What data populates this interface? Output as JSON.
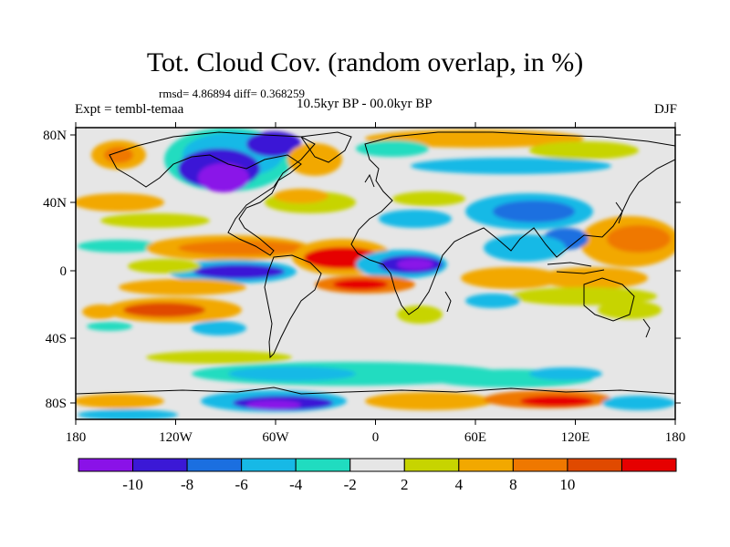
{
  "title": "Tot. Cloud Cov. (random overlap, in %)",
  "stats": "rmsd= 4.86894 diff= 0.368259",
  "experiment": "Expt = tembl-temaa",
  "period": "10.5kyr BP - 00.0kyr BP",
  "season": "DJF",
  "axes": {
    "x_ticks": [
      "180",
      "120W",
      "60W",
      "0",
      "60E",
      "120E",
      "180"
    ],
    "y_ticks": [
      "80N",
      "40N",
      "0",
      "40S",
      "80S"
    ]
  },
  "colorbar": {
    "labels": [
      "-10",
      "-8",
      "-6",
      "-4",
      "-2",
      "2",
      "4",
      "8",
      "10"
    ],
    "colors": [
      "#8a12e8",
      "#3b18d6",
      "#1b6fe0",
      "#17b9e6",
      "#20dcc0",
      "#e6e6e6",
      "#c7d400",
      "#f2a800",
      "#ef7800",
      "#e04a00",
      "#e60000"
    ]
  },
  "palette": {
    "background": "#e6e6e6",
    "coast": "#000000"
  }
}
